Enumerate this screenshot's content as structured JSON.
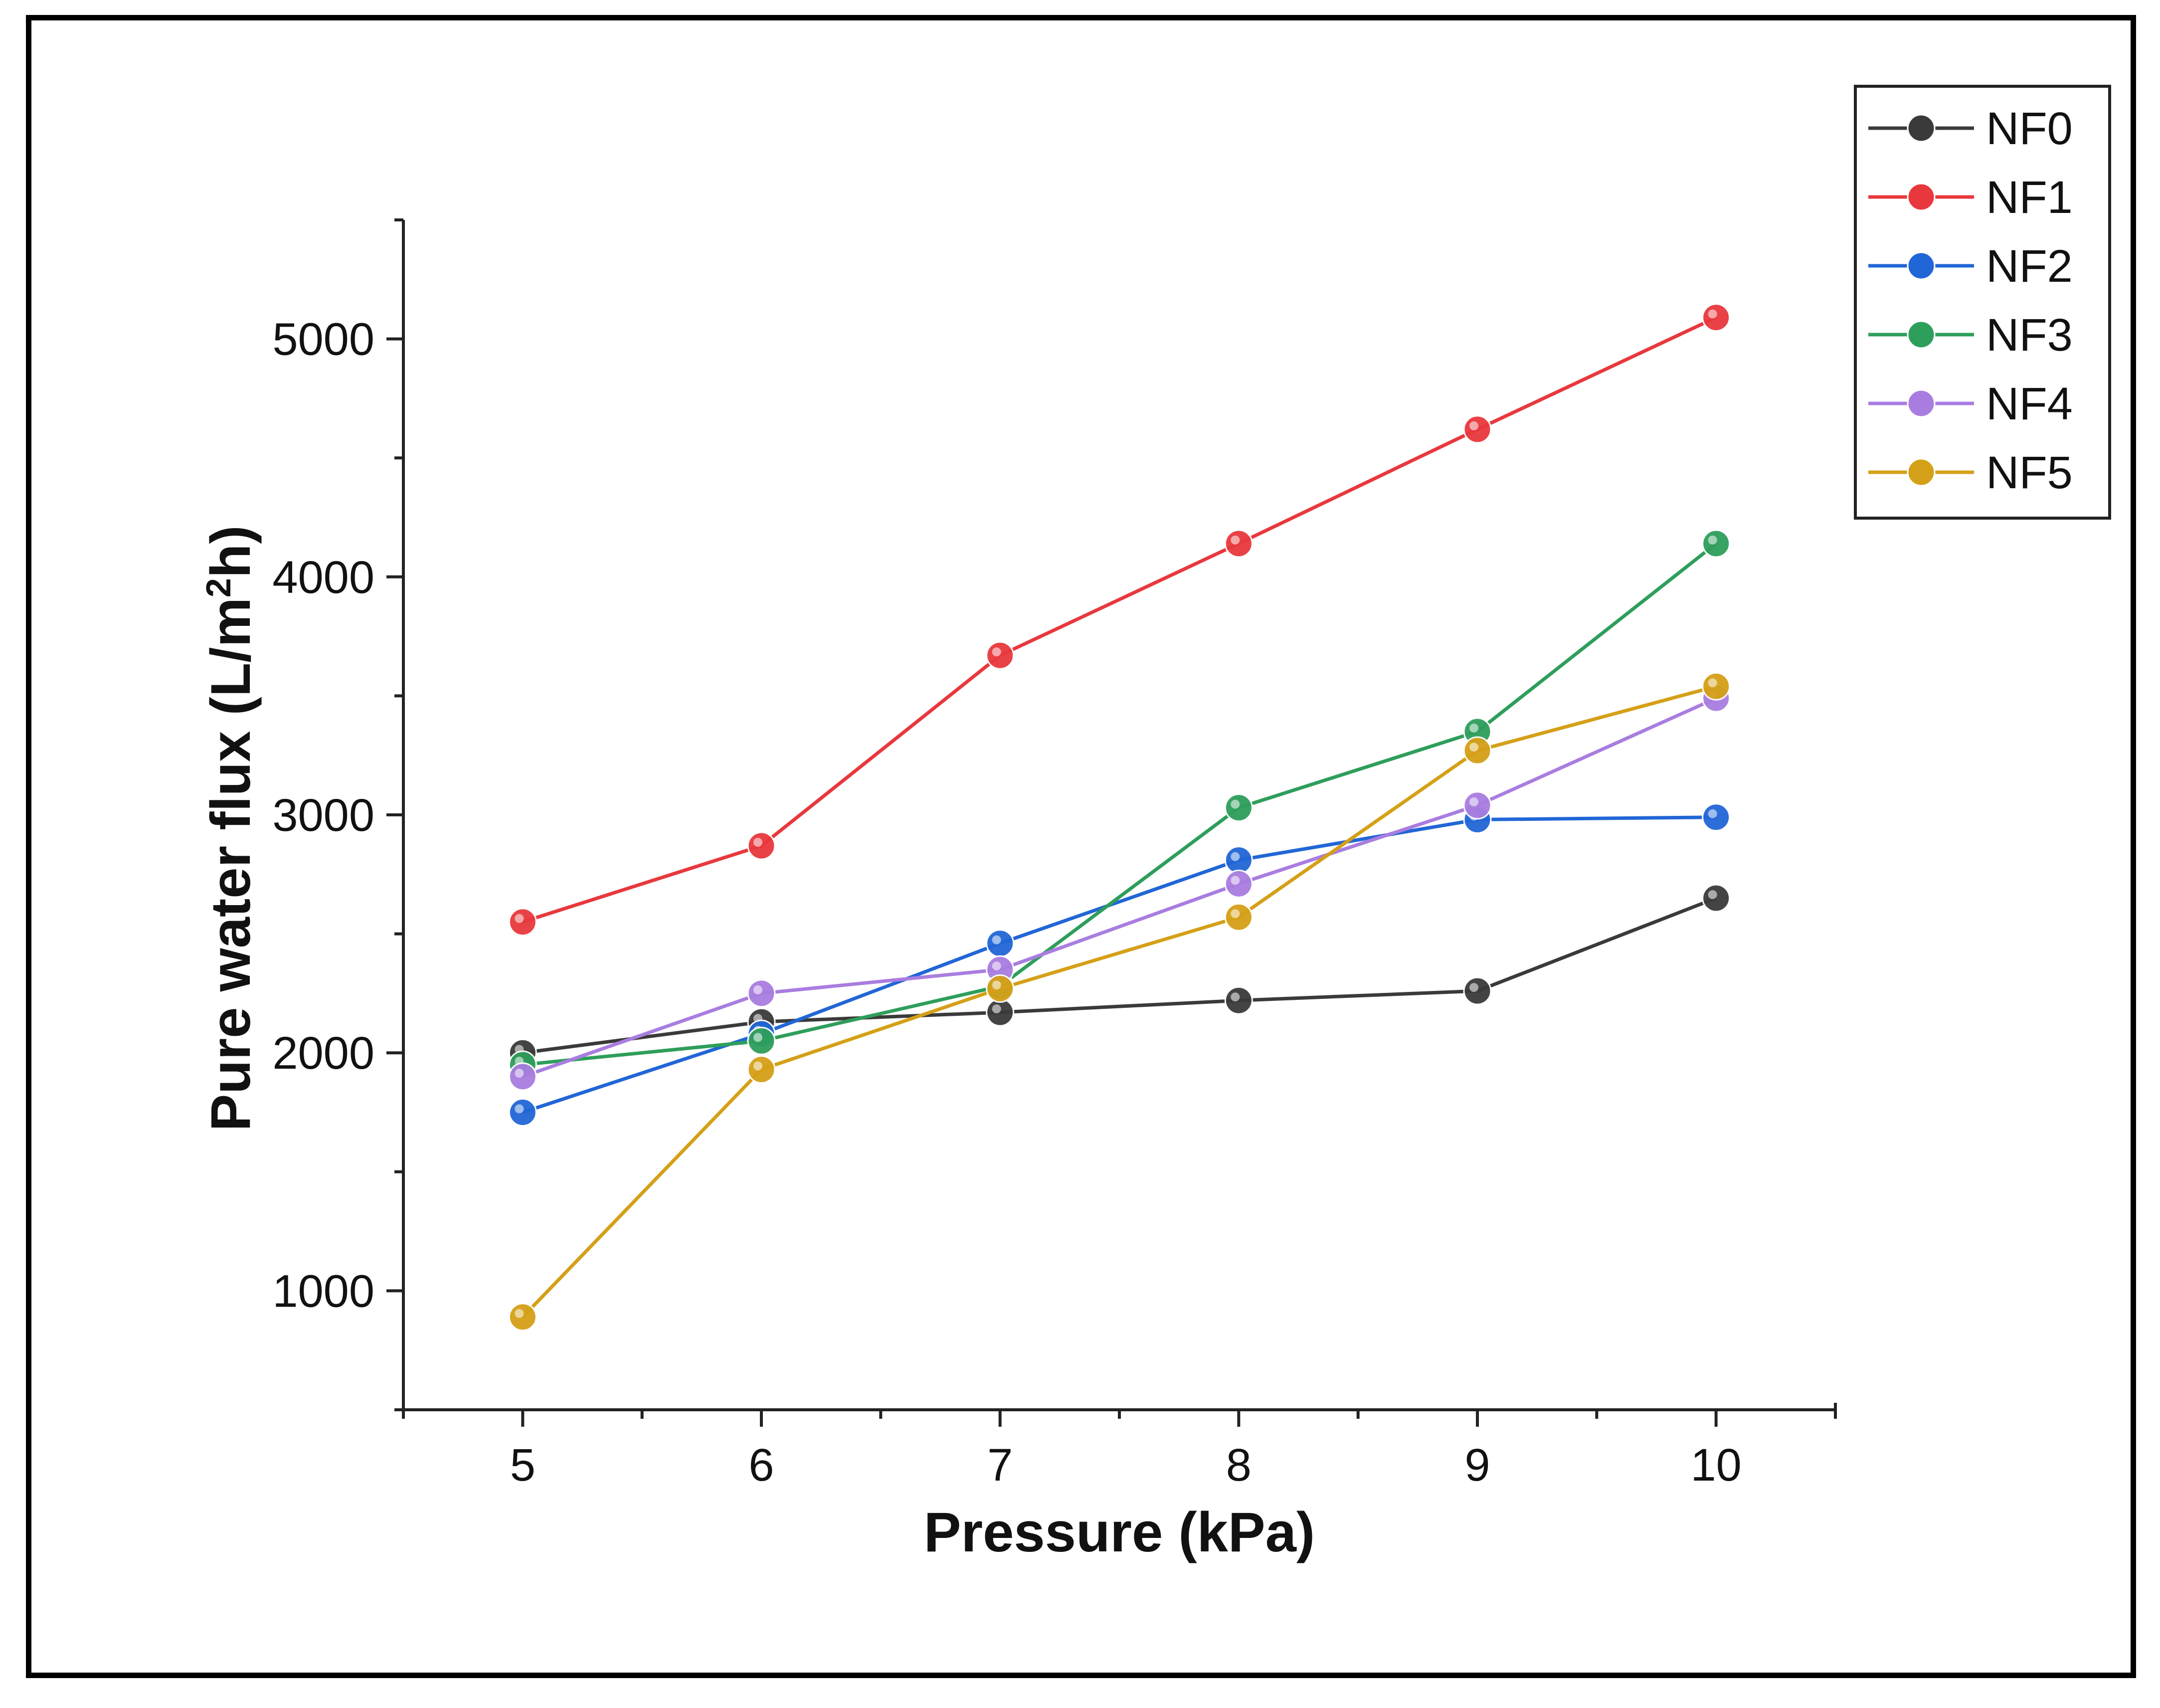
{
  "chart_data": {
    "type": "line",
    "xlabel": "Pressure (kPa)",
    "ylabel": "Pure water flux (L/m²h)",
    "ylabel_parts": {
      "pre": "Pure water flux (L/m",
      "sup": "2",
      "post": "h)"
    },
    "x": [
      5,
      6,
      7,
      8,
      9,
      10
    ],
    "x_ticks": [
      "5",
      "6",
      "7",
      "8",
      "9",
      "10"
    ],
    "y_ticks": [
      "1000",
      "2000",
      "3000",
      "4000",
      "5000"
    ],
    "xlim": [
      4.5,
      10.5
    ],
    "ylim": [
      500,
      5500
    ],
    "grid": false,
    "legend_position": "top-right",
    "series": [
      {
        "name": "NF0",
        "color": "#3a3a3a",
        "values": [
          2000,
          2130,
          2170,
          2220,
          2260,
          2650
        ]
      },
      {
        "name": "NF1",
        "color": "#e8383d",
        "values": [
          2550,
          2870,
          3670,
          4140,
          4620,
          5090
        ]
      },
      {
        "name": "NF2",
        "color": "#2166d6",
        "values": [
          1750,
          2080,
          2460,
          2810,
          2980,
          2990
        ]
      },
      {
        "name": "NF3",
        "color": "#2e9e5b",
        "values": [
          1950,
          2050,
          2280,
          3030,
          3350,
          4140
        ]
      },
      {
        "name": "NF4",
        "color": "#a97de0",
        "values": [
          1900,
          2250,
          2350,
          2710,
          3040,
          3490
        ]
      },
      {
        "name": "NF5",
        "color": "#d4a017",
        "values": [
          890,
          1930,
          2270,
          2570,
          3270,
          3540
        ]
      }
    ]
  }
}
